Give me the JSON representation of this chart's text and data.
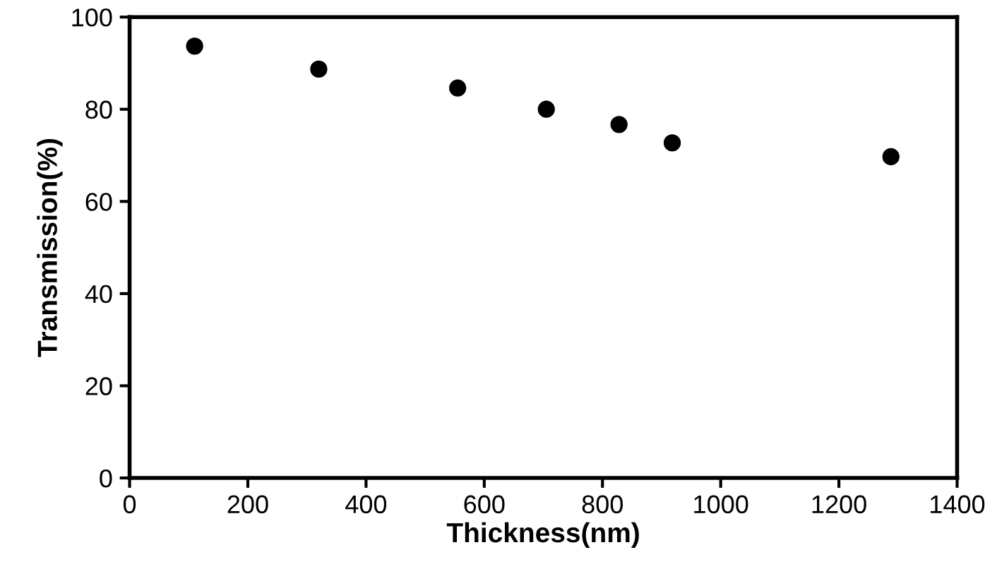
{
  "chart_data": {
    "type": "scatter",
    "xlabel": "Thickness(nm)",
    "ylabel": "Transmission(%)",
    "x": [
      110,
      320,
      555,
      705,
      828,
      918,
      1288
    ],
    "values": [
      93.7,
      88.7,
      84.6,
      80,
      76.7,
      72.7,
      69.7
    ],
    "color": "#000000",
    "marker": "circle",
    "xlim": [
      0,
      1400
    ],
    "xticks": [
      0,
      200,
      400,
      600,
      800,
      1000,
      1200,
      1400
    ],
    "ylim": [
      0,
      100
    ],
    "yticks": [
      0,
      20,
      40,
      60,
      80,
      100
    ],
    "grid": false
  }
}
